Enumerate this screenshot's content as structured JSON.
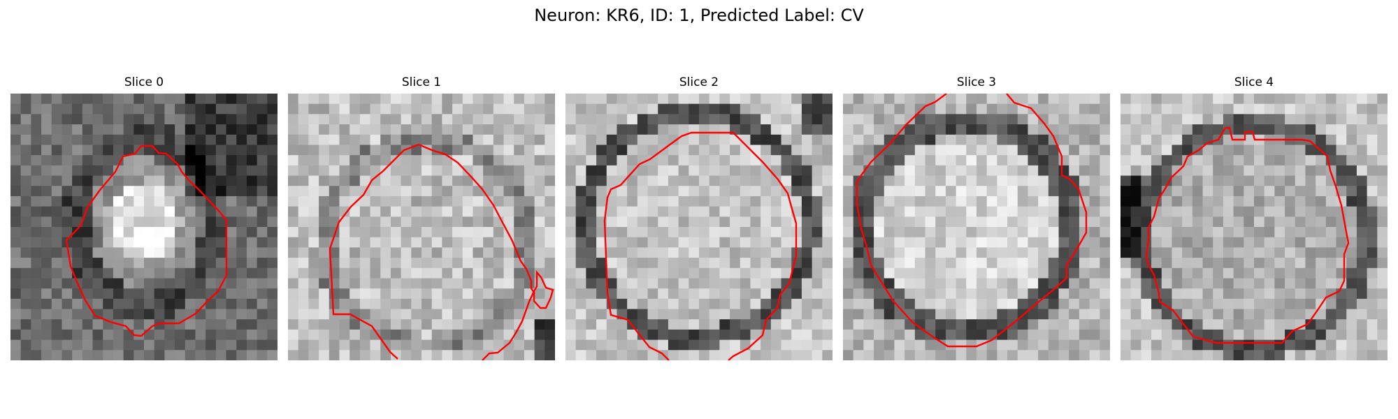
{
  "figure": {
    "title": "Neuron: KR6, ID: 1, Predicted Label: CV"
  },
  "colors": {
    "contour": "#ff0000",
    "background": "#ffffff"
  },
  "panels": [
    {
      "label": "Slice 0"
    },
    {
      "label": "Slice 1"
    },
    {
      "label": "Slice 2"
    },
    {
      "label": "Slice 3"
    },
    {
      "label": "Slice 4"
    }
  ]
}
